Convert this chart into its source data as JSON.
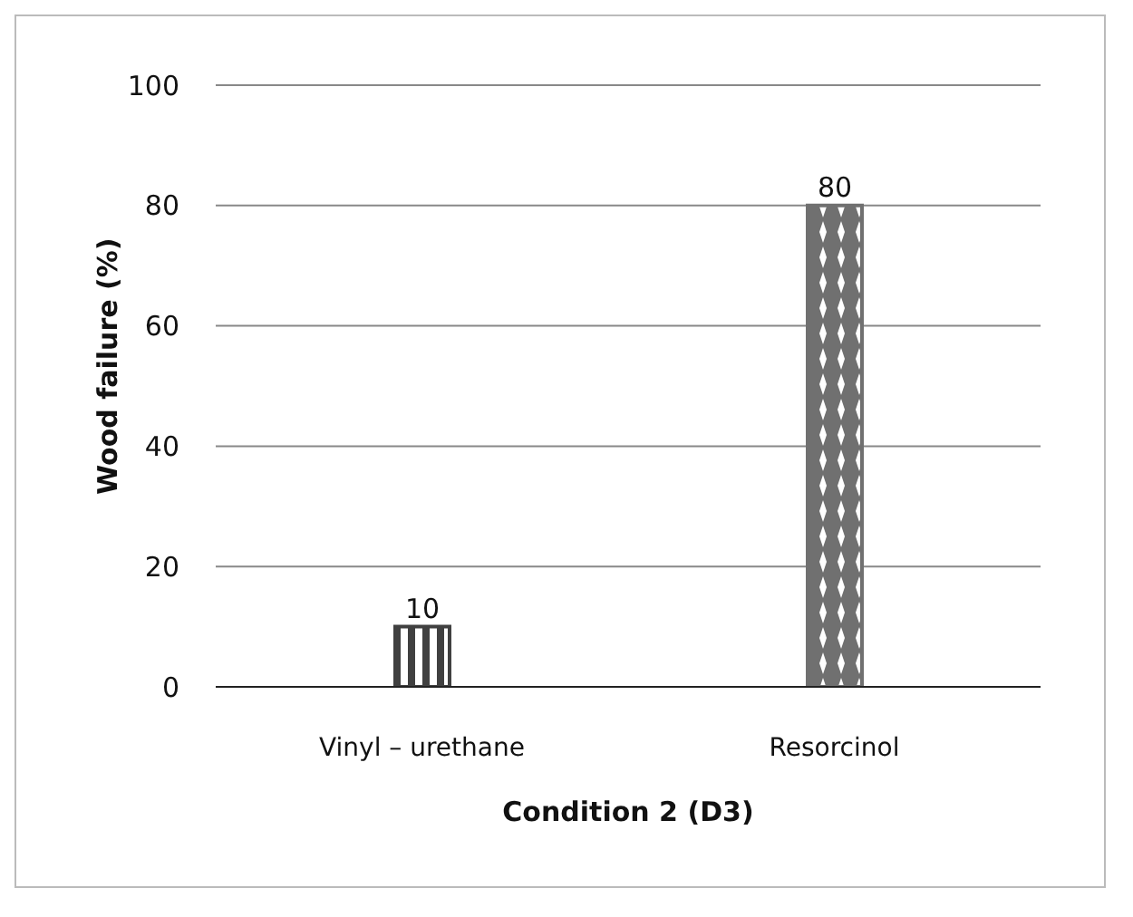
{
  "chart_data": {
    "type": "bar",
    "xlabel": "Condition 2 (D3)",
    "ylabel": "Wood failure (%)",
    "categories": [
      "Vinyl – urethane",
      "Resorcinol"
    ],
    "values": [
      10,
      80
    ],
    "colors": [
      "#404040",
      "#707070"
    ],
    "ylim": [
      0,
      100
    ],
    "yticks": [
      0,
      20,
      40,
      60,
      80,
      100
    ],
    "grid": "y",
    "data_labels": true
  }
}
